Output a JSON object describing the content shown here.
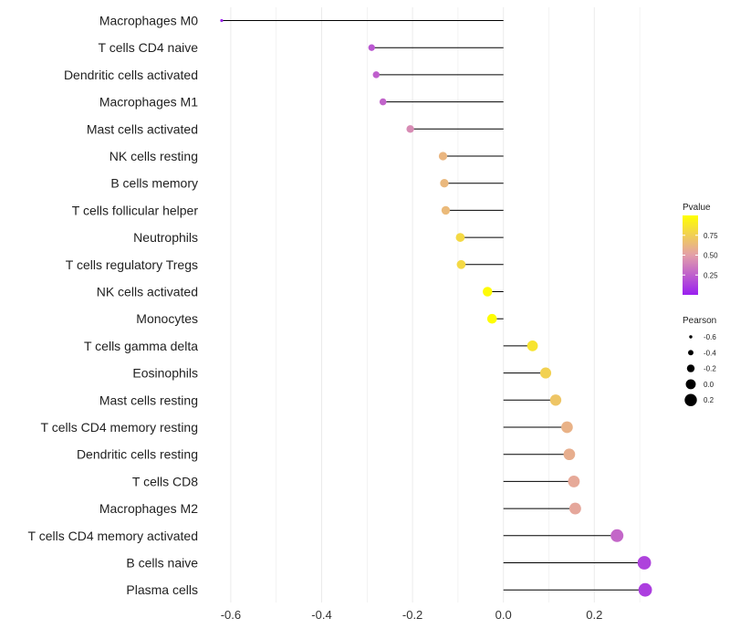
{
  "chart_data": {
    "type": "lollipop",
    "categories": [
      "Macrophages M0",
      "T cells CD4 naive",
      "Dendritic cells activated",
      "Macrophages M1",
      "Mast cells activated",
      "NK cells resting",
      "B cells memory",
      "T cells follicular helper",
      "Neutrophils",
      "T cells regulatory  Tregs ",
      "NK cells activated",
      "Monocytes",
      "T cells gamma delta",
      "Eosinophils",
      "Mast cells resting",
      "T cells CD4 memory resting",
      "Dendritic cells resting",
      "T cells CD8",
      "Macrophages M2",
      "T cells CD4 memory activated",
      "B cells naive",
      "Plasma cells"
    ],
    "values": [
      -0.62,
      -0.29,
      -0.28,
      -0.265,
      -0.205,
      -0.133,
      -0.13,
      -0.127,
      -0.095,
      -0.093,
      -0.035,
      -0.025,
      0.064,
      0.093,
      0.115,
      0.14,
      0.145,
      0.155,
      0.158,
      0.25,
      0.31,
      0.312
    ],
    "pvalues": [
      0.02,
      0.22,
      0.25,
      0.27,
      0.42,
      0.62,
      0.63,
      0.64,
      0.8,
      0.8,
      0.98,
      0.99,
      0.86,
      0.76,
      0.7,
      0.6,
      0.58,
      0.55,
      0.54,
      0.28,
      0.14,
      0.12
    ],
    "xlim": [
      -0.65,
      0.35
    ],
    "x_ticks": [
      -0.6,
      -0.4,
      -0.2,
      0.0,
      0.2
    ],
    "x_tick_labels": [
      "-0.6",
      "-0.4",
      "-0.2",
      "0.0",
      "0.2"
    ],
    "title": "",
    "xlabel": "",
    "ylabel": "",
    "grid": true,
    "legend": {
      "position": "right",
      "color_title": "Pvalue",
      "color_breaks": [
        0.25,
        0.5,
        0.75
      ],
      "color_labels": [
        "0.25",
        "0.50",
        "0.75"
      ],
      "color_range": [
        0.0,
        1.0
      ],
      "size_title": "Pearson",
      "size_breaks": [
        -0.6,
        -0.4,
        -0.2,
        0.0,
        0.2
      ],
      "size_labels": [
        "-0.6",
        "-0.4",
        "-0.2",
        "0.0",
        "0.2"
      ]
    },
    "colors": {
      "low": "#9a1ff0",
      "mid": "#e39fa9",
      "high": "#ffff00",
      "stem": "#000000",
      "grid": "#ebebeb"
    }
  }
}
